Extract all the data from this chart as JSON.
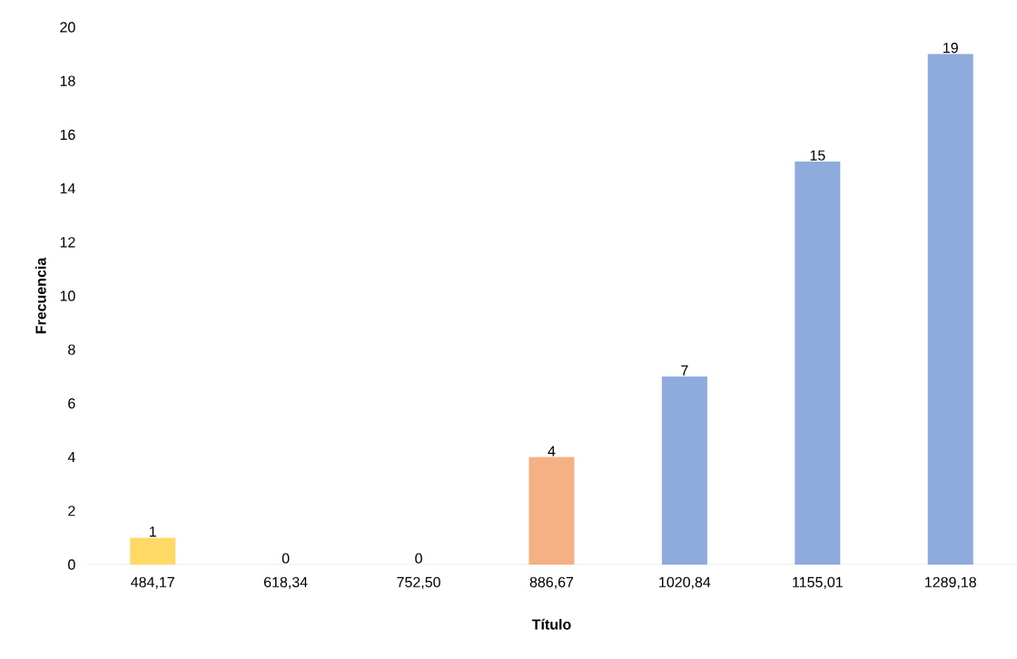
{
  "chart_data": {
    "type": "bar",
    "xlabel": "Título",
    "ylabel": "Frecuencia",
    "categories": [
      "484,17",
      "618,34",
      "752,50",
      "886,67",
      "1020,84",
      "1155,01",
      "1289,18"
    ],
    "values": [
      1,
      0,
      0,
      4,
      7,
      15,
      19
    ],
    "colors": [
      "#ffd966",
      "#8faadc",
      "#8faadc",
      "#f4b183",
      "#8faadc",
      "#8faadc",
      "#8faadc"
    ],
    "ylim": [
      0,
      20
    ],
    "yticks": [
      0,
      2,
      4,
      6,
      8,
      10,
      12,
      14,
      16,
      18,
      20
    ],
    "data_labels": true,
    "grid": false
  }
}
